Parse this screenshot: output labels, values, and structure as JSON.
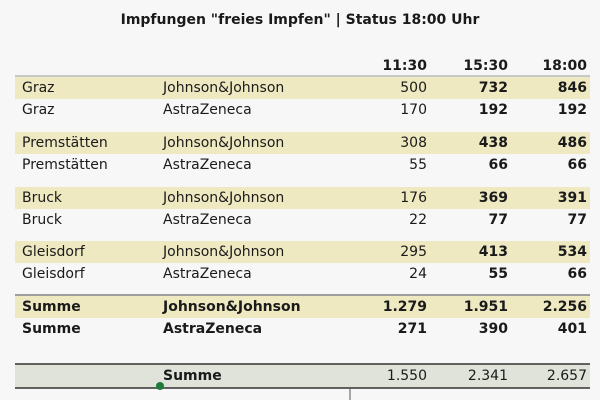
{
  "title": "Impfungen \"freies Impfen\" | Status 18:00 Uhr",
  "columns": [
    "11:30",
    "15:30",
    "18:00"
  ],
  "rows": [
    [
      "Graz",
      "Johnson&Johnson",
      "500",
      "732",
      "846"
    ],
    [
      "Graz",
      "AstraZeneca",
      "170",
      "192",
      "192"
    ],
    [
      "Premstätten",
      "Johnson&Johnson",
      "308",
      "438",
      "486"
    ],
    [
      "Premstätten",
      "AstraZeneca",
      "55",
      "66",
      "66"
    ],
    [
      "Bruck",
      "Johnson&Johnson",
      "176",
      "369",
      "391"
    ],
    [
      "Bruck",
      "AstraZeneca",
      "22",
      "77",
      "77"
    ],
    [
      "Gleisdorf",
      "Johnson&Johnson",
      "295",
      "413",
      "534"
    ],
    [
      "Gleisdorf",
      "AstraZeneca",
      "24",
      "55",
      "66"
    ],
    [
      "Summe",
      "Johnson&Johnson",
      "1.279",
      "1.951",
      "2.256"
    ],
    [
      "Summe",
      "AstraZeneca",
      "271",
      "390",
      "401"
    ]
  ],
  "total": {
    "label": "Summe",
    "values": [
      "1.550",
      "2.341",
      "2.657"
    ]
  }
}
